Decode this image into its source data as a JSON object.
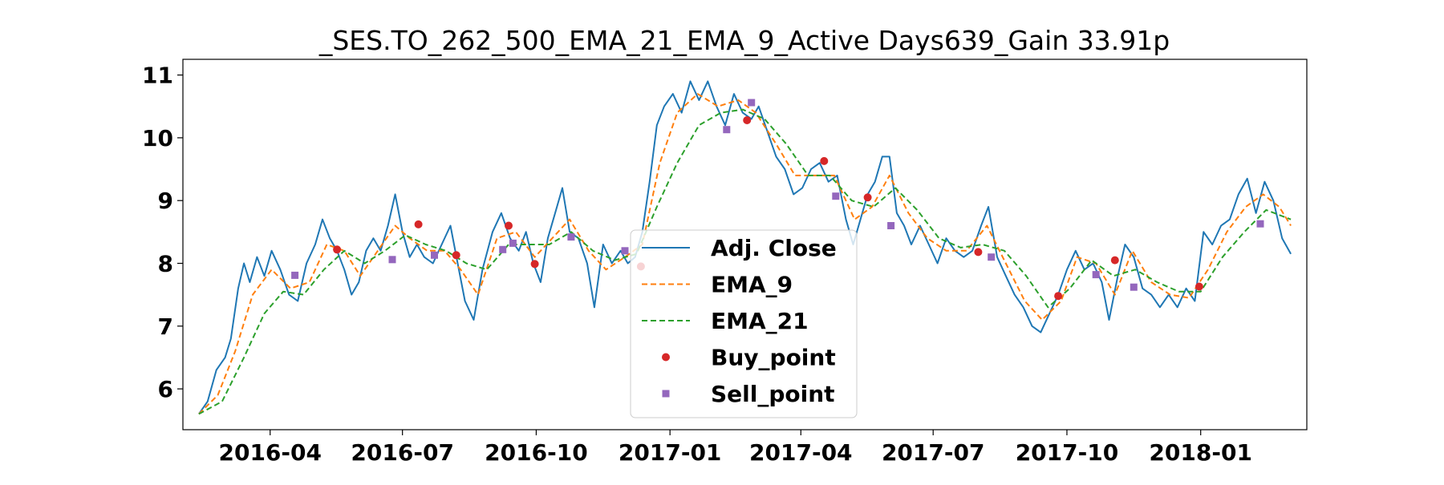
{
  "chart_data": {
    "type": "line",
    "title": "_SES.TO_262_500_EMA_21_EMA_9_Active Days639_Gain  33.91p",
    "xlabel": "",
    "ylabel": "",
    "x_range": [
      "2016-02-01",
      "2018-03-15"
    ],
    "ylim": [
      5.35,
      11.25
    ],
    "x_ticks": [
      "2016-04",
      "2016-07",
      "2016-10",
      "2017-01",
      "2017-04",
      "2017-07",
      "2017-10",
      "2018-01"
    ],
    "y_ticks": [
      6,
      7,
      8,
      9,
      10,
      11
    ],
    "grid": false,
    "legend_position": "center",
    "colors": {
      "adj_close": "#1f77b4",
      "ema_9": "#ff7f0e",
      "ema_21": "#2ca02c",
      "buy_point": "#d62728",
      "sell_point": "#9467bd"
    },
    "series": [
      {
        "name": "Adj. Close",
        "style": "solid",
        "points": [
          [
            "2016-02-12",
            5.6
          ],
          [
            "2016-02-18",
            5.8
          ],
          [
            "2016-02-24",
            6.3
          ],
          [
            "2016-03-01",
            6.5
          ],
          [
            "2016-03-05",
            6.8
          ],
          [
            "2016-03-10",
            7.6
          ],
          [
            "2016-03-14",
            8.0
          ],
          [
            "2016-03-18",
            7.7
          ],
          [
            "2016-03-23",
            8.1
          ],
          [
            "2016-03-28",
            7.8
          ],
          [
            "2016-04-02",
            8.2
          ],
          [
            "2016-04-08",
            7.9
          ],
          [
            "2016-04-14",
            7.5
          ],
          [
            "2016-04-20",
            7.4
          ],
          [
            "2016-04-26",
            8.0
          ],
          [
            "2016-05-02",
            8.3
          ],
          [
            "2016-05-07",
            8.7
          ],
          [
            "2016-05-12",
            8.4
          ],
          [
            "2016-05-17",
            8.2
          ],
          [
            "2016-05-22",
            7.9
          ],
          [
            "2016-05-27",
            7.5
          ],
          [
            "2016-06-01",
            7.7
          ],
          [
            "2016-06-06",
            8.2
          ],
          [
            "2016-06-11",
            8.4
          ],
          [
            "2016-06-16",
            8.2
          ],
          [
            "2016-06-21",
            8.6
          ],
          [
            "2016-06-26",
            9.1
          ],
          [
            "2016-07-01",
            8.5
          ],
          [
            "2016-07-06",
            8.1
          ],
          [
            "2016-07-11",
            8.3
          ],
          [
            "2016-07-16",
            8.1
          ],
          [
            "2016-07-22",
            8.0
          ],
          [
            "2016-07-28",
            8.3
          ],
          [
            "2016-08-03",
            8.6
          ],
          [
            "2016-08-08",
            8.0
          ],
          [
            "2016-08-13",
            7.4
          ],
          [
            "2016-08-19",
            7.1
          ],
          [
            "2016-08-25",
            7.9
          ],
          [
            "2016-09-01",
            8.5
          ],
          [
            "2016-09-07",
            8.8
          ],
          [
            "2016-09-13",
            8.4
          ],
          [
            "2016-09-19",
            8.2
          ],
          [
            "2016-09-24",
            8.5
          ],
          [
            "2016-09-29",
            8.0
          ],
          [
            "2016-10-04",
            7.7
          ],
          [
            "2016-10-09",
            8.4
          ],
          [
            "2016-10-14",
            8.8
          ],
          [
            "2016-10-19",
            9.2
          ],
          [
            "2016-10-24",
            8.5
          ],
          [
            "2016-10-30",
            8.4
          ],
          [
            "2016-11-05",
            8.0
          ],
          [
            "2016-11-10",
            7.3
          ],
          [
            "2016-11-16",
            8.3
          ],
          [
            "2016-11-22",
            8.0
          ],
          [
            "2016-11-28",
            8.2
          ],
          [
            "2016-12-03",
            8.0
          ],
          [
            "2016-12-08",
            8.1
          ],
          [
            "2016-12-13",
            8.5
          ],
          [
            "2016-12-18",
            9.3
          ],
          [
            "2016-12-23",
            10.2
          ],
          [
            "2016-12-28",
            10.5
          ],
          [
            "2017-01-03",
            10.7
          ],
          [
            "2017-01-09",
            10.4
          ],
          [
            "2017-01-15",
            10.9
          ],
          [
            "2017-01-21",
            10.6
          ],
          [
            "2017-01-27",
            10.9
          ],
          [
            "2017-02-02",
            10.5
          ],
          [
            "2017-02-08",
            10.2
          ],
          [
            "2017-02-14",
            10.7
          ],
          [
            "2017-02-20",
            10.4
          ],
          [
            "2017-02-26",
            10.3
          ],
          [
            "2017-03-03",
            10.5
          ],
          [
            "2017-03-09",
            10.1
          ],
          [
            "2017-03-15",
            9.7
          ],
          [
            "2017-03-21",
            9.5
          ],
          [
            "2017-03-27",
            9.1
          ],
          [
            "2017-04-02",
            9.2
          ],
          [
            "2017-04-08",
            9.5
          ],
          [
            "2017-04-14",
            9.6
          ],
          [
            "2017-04-20",
            9.3
          ],
          [
            "2017-04-26",
            9.4
          ],
          [
            "2017-05-02",
            8.7
          ],
          [
            "2017-05-07",
            8.3
          ],
          [
            "2017-05-12",
            8.7
          ],
          [
            "2017-05-17",
            9.1
          ],
          [
            "2017-05-22",
            9.3
          ],
          [
            "2017-05-27",
            9.7
          ],
          [
            "2017-06-01",
            9.7
          ],
          [
            "2017-06-06",
            8.8
          ],
          [
            "2017-06-11",
            8.6
          ],
          [
            "2017-06-16",
            8.3
          ],
          [
            "2017-06-22",
            8.6
          ],
          [
            "2017-06-28",
            8.3
          ],
          [
            "2017-07-04",
            8.0
          ],
          [
            "2017-07-10",
            8.4
          ],
          [
            "2017-07-16",
            8.2
          ],
          [
            "2017-07-22",
            8.1
          ],
          [
            "2017-07-28",
            8.2
          ],
          [
            "2017-08-03",
            8.6
          ],
          [
            "2017-08-08",
            8.9
          ],
          [
            "2017-08-14",
            8.1
          ],
          [
            "2017-08-20",
            7.8
          ],
          [
            "2017-08-26",
            7.5
          ],
          [
            "2017-09-01",
            7.3
          ],
          [
            "2017-09-07",
            7.0
          ],
          [
            "2017-09-13",
            6.9
          ],
          [
            "2017-09-19",
            7.2
          ],
          [
            "2017-09-25",
            7.5
          ],
          [
            "2017-10-01",
            7.9
          ],
          [
            "2017-10-07",
            8.2
          ],
          [
            "2017-10-13",
            7.9
          ],
          [
            "2017-10-19",
            8.0
          ],
          [
            "2017-10-25",
            7.7
          ],
          [
            "2017-10-30",
            7.1
          ],
          [
            "2017-11-05",
            7.8
          ],
          [
            "2017-11-10",
            8.3
          ],
          [
            "2017-11-16",
            8.1
          ],
          [
            "2017-11-22",
            7.6
          ],
          [
            "2017-11-28",
            7.5
          ],
          [
            "2017-12-04",
            7.3
          ],
          [
            "2017-12-10",
            7.5
          ],
          [
            "2017-12-16",
            7.3
          ],
          [
            "2017-12-22",
            7.6
          ],
          [
            "2017-12-28",
            7.4
          ],
          [
            "2018-01-03",
            8.5
          ],
          [
            "2018-01-09",
            8.3
          ],
          [
            "2018-01-15",
            8.6
          ],
          [
            "2018-01-21",
            8.7
          ],
          [
            "2018-01-27",
            9.1
          ],
          [
            "2018-02-02",
            9.35
          ],
          [
            "2018-02-08",
            8.8
          ],
          [
            "2018-02-14",
            9.3
          ],
          [
            "2018-02-20",
            9.0
          ],
          [
            "2018-02-26",
            8.4
          ],
          [
            "2018-03-04",
            8.15
          ]
        ]
      },
      {
        "name": "EMA_9",
        "style": "dashed",
        "points": [
          [
            "2016-02-12",
            5.6
          ],
          [
            "2016-02-25",
            5.9
          ],
          [
            "2016-03-08",
            6.6
          ],
          [
            "2016-03-20",
            7.5
          ],
          [
            "2016-04-02",
            7.9
          ],
          [
            "2016-04-15",
            7.6
          ],
          [
            "2016-04-28",
            7.7
          ],
          [
            "2016-05-10",
            8.3
          ],
          [
            "2016-05-22",
            8.2
          ],
          [
            "2016-06-02",
            7.8
          ],
          [
            "2016-06-14",
            8.2
          ],
          [
            "2016-06-26",
            8.6
          ],
          [
            "2016-07-06",
            8.4
          ],
          [
            "2016-07-18",
            8.2
          ],
          [
            "2016-07-30",
            8.2
          ],
          [
            "2016-08-10",
            7.9
          ],
          [
            "2016-08-22",
            7.5
          ],
          [
            "2016-09-04",
            8.4
          ],
          [
            "2016-09-17",
            8.5
          ],
          [
            "2016-09-30",
            8.1
          ],
          [
            "2016-10-12",
            8.4
          ],
          [
            "2016-10-24",
            8.7
          ],
          [
            "2016-11-06",
            8.2
          ],
          [
            "2016-11-18",
            7.9
          ],
          [
            "2016-12-01",
            8.1
          ],
          [
            "2016-12-13",
            8.3
          ],
          [
            "2016-12-25",
            9.6
          ],
          [
            "2017-01-06",
            10.4
          ],
          [
            "2017-01-20",
            10.7
          ],
          [
            "2017-02-03",
            10.5
          ],
          [
            "2017-02-17",
            10.6
          ],
          [
            "2017-03-01",
            10.4
          ],
          [
            "2017-03-15",
            9.9
          ],
          [
            "2017-03-28",
            9.4
          ],
          [
            "2017-04-10",
            9.4
          ],
          [
            "2017-04-24",
            9.4
          ],
          [
            "2017-05-08",
            8.7
          ],
          [
            "2017-05-20",
            8.9
          ],
          [
            "2017-06-01",
            9.4
          ],
          [
            "2017-06-14",
            8.8
          ],
          [
            "2017-06-27",
            8.4
          ],
          [
            "2017-07-10",
            8.2
          ],
          [
            "2017-07-24",
            8.2
          ],
          [
            "2017-08-07",
            8.6
          ],
          [
            "2017-08-20",
            8.0
          ],
          [
            "2017-09-02",
            7.4
          ],
          [
            "2017-09-14",
            7.1
          ],
          [
            "2017-09-27",
            7.4
          ],
          [
            "2017-10-08",
            8.1
          ],
          [
            "2017-10-21",
            8.0
          ],
          [
            "2017-11-03",
            7.5
          ],
          [
            "2017-11-15",
            8.2
          ],
          [
            "2017-11-28",
            7.7
          ],
          [
            "2017-12-11",
            7.5
          ],
          [
            "2017-12-24",
            7.45
          ],
          [
            "2018-01-06",
            7.9
          ],
          [
            "2018-01-19",
            8.5
          ],
          [
            "2018-02-01",
            8.9
          ],
          [
            "2018-02-13",
            9.1
          ],
          [
            "2018-02-24",
            8.9
          ],
          [
            "2018-03-04",
            8.6
          ]
        ]
      },
      {
        "name": "EMA_21",
        "style": "dashed",
        "points": [
          [
            "2016-02-12",
            5.6
          ],
          [
            "2016-02-28",
            5.8
          ],
          [
            "2016-03-14",
            6.5
          ],
          [
            "2016-03-28",
            7.2
          ],
          [
            "2016-04-10",
            7.55
          ],
          [
            "2016-04-24",
            7.5
          ],
          [
            "2016-05-08",
            7.9
          ],
          [
            "2016-05-22",
            8.2
          ],
          [
            "2016-06-05",
            8.0
          ],
          [
            "2016-06-19",
            8.2
          ],
          [
            "2016-07-03",
            8.45
          ],
          [
            "2016-07-17",
            8.3
          ],
          [
            "2016-07-31",
            8.2
          ],
          [
            "2016-08-14",
            8.0
          ],
          [
            "2016-08-28",
            7.9
          ],
          [
            "2016-09-12",
            8.3
          ],
          [
            "2016-09-26",
            8.3
          ],
          [
            "2016-10-10",
            8.3
          ],
          [
            "2016-10-25",
            8.5
          ],
          [
            "2016-11-09",
            8.2
          ],
          [
            "2016-11-24",
            8.05
          ],
          [
            "2016-12-09",
            8.15
          ],
          [
            "2016-12-23",
            8.9
          ],
          [
            "2017-01-06",
            9.6
          ],
          [
            "2017-01-21",
            10.2
          ],
          [
            "2017-02-05",
            10.4
          ],
          [
            "2017-02-20",
            10.45
          ],
          [
            "2017-03-07",
            10.3
          ],
          [
            "2017-03-22",
            9.9
          ],
          [
            "2017-04-06",
            9.4
          ],
          [
            "2017-04-21",
            9.4
          ],
          [
            "2017-05-06",
            9.0
          ],
          [
            "2017-05-21",
            8.9
          ],
          [
            "2017-06-05",
            9.2
          ],
          [
            "2017-06-20",
            8.85
          ],
          [
            "2017-07-05",
            8.4
          ],
          [
            "2017-07-20",
            8.25
          ],
          [
            "2017-08-04",
            8.3
          ],
          [
            "2017-08-19",
            8.2
          ],
          [
            "2017-09-03",
            7.8
          ],
          [
            "2017-09-18",
            7.3
          ],
          [
            "2017-10-03",
            7.6
          ],
          [
            "2017-10-18",
            8.05
          ],
          [
            "2017-11-02",
            7.8
          ],
          [
            "2017-11-17",
            7.9
          ],
          [
            "2017-12-02",
            7.7
          ],
          [
            "2017-12-17",
            7.55
          ],
          [
            "2018-01-01",
            7.55
          ],
          [
            "2018-01-16",
            8.1
          ],
          [
            "2018-01-31",
            8.5
          ],
          [
            "2018-02-15",
            8.85
          ],
          [
            "2018-03-04",
            8.7
          ]
        ]
      }
    ],
    "buy_points": [
      [
        "2016-05-17",
        8.22
      ],
      [
        "2016-07-12",
        8.62
      ],
      [
        "2016-08-07",
        8.13
      ],
      [
        "2016-09-12",
        8.6
      ],
      [
        "2016-09-30",
        7.99
      ],
      [
        "2016-12-12",
        7.95
      ],
      [
        "2017-02-23",
        10.28
      ],
      [
        "2017-04-17",
        9.63
      ],
      [
        "2017-05-17",
        9.05
      ],
      [
        "2017-08-01",
        8.18
      ],
      [
        "2017-09-25",
        7.48
      ],
      [
        "2017-11-03",
        8.05
      ],
      [
        "2017-12-31",
        7.63
      ]
    ],
    "sell_points": [
      [
        "2016-04-18",
        7.81
      ],
      [
        "2016-06-24",
        8.06
      ],
      [
        "2016-07-23",
        8.13
      ],
      [
        "2016-09-08",
        8.22
      ],
      [
        "2016-09-15",
        8.32
      ],
      [
        "2016-10-25",
        8.42
      ],
      [
        "2016-12-01",
        8.2
      ],
      [
        "2017-02-09",
        10.13
      ],
      [
        "2017-02-26",
        10.56
      ],
      [
        "2017-04-25",
        9.07
      ],
      [
        "2017-06-02",
        8.6
      ],
      [
        "2017-08-10",
        8.1
      ],
      [
        "2017-10-21",
        7.82
      ],
      [
        "2017-11-16",
        7.62
      ],
      [
        "2018-02-11",
        8.63
      ]
    ],
    "legend": [
      {
        "label": "Adj. Close",
        "kind": "line",
        "series": "adj_close"
      },
      {
        "label": "EMA_9",
        "kind": "dashed",
        "series": "ema_9"
      },
      {
        "label": "EMA_21",
        "kind": "dashed",
        "series": "ema_21"
      },
      {
        "label": "Buy_point",
        "kind": "circle",
        "series": "buy_point"
      },
      {
        "label": "Sell_point",
        "kind": "square",
        "series": "sell_point"
      }
    ]
  }
}
